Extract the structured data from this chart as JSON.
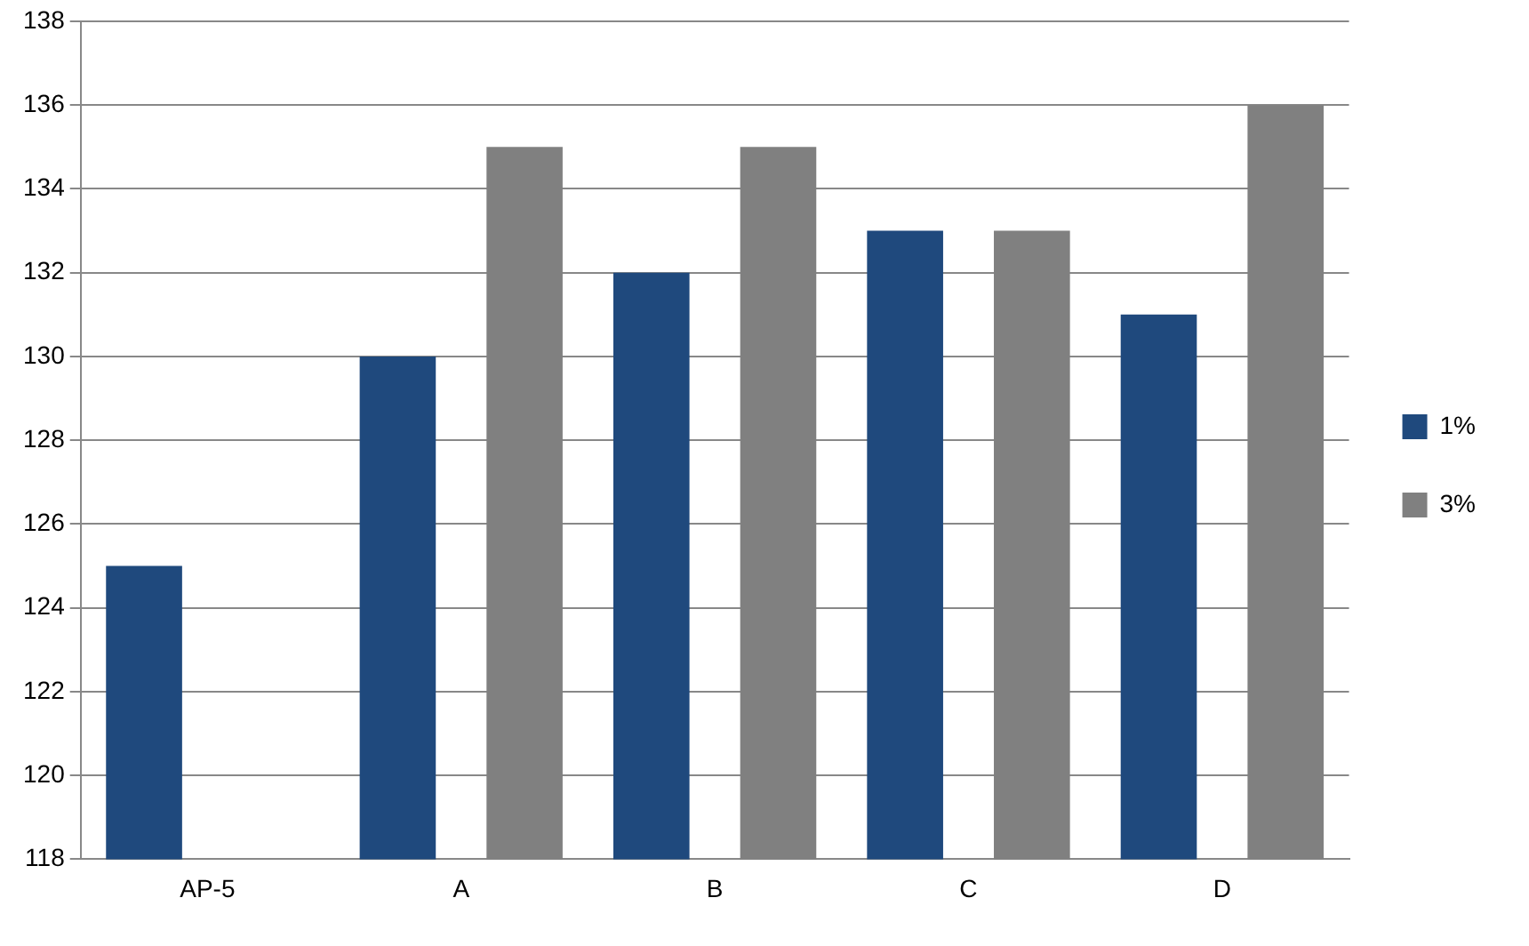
{
  "chart_data": {
    "type": "bar",
    "categories": [
      "AP-5",
      "A",
      "B",
      "C",
      "D"
    ],
    "series": [
      {
        "name": "1%",
        "color": "#1f497d",
        "values": [
          125,
          130,
          132,
          133,
          131
        ]
      },
      {
        "name": "3%",
        "color": "#808080",
        "values": [
          null,
          135,
          135,
          133,
          136
        ]
      }
    ],
    "ylim": [
      118,
      138
    ],
    "yticks": [
      118,
      120,
      122,
      124,
      126,
      128,
      130,
      132,
      134,
      136,
      138
    ],
    "grid": "y",
    "legend": "right"
  }
}
